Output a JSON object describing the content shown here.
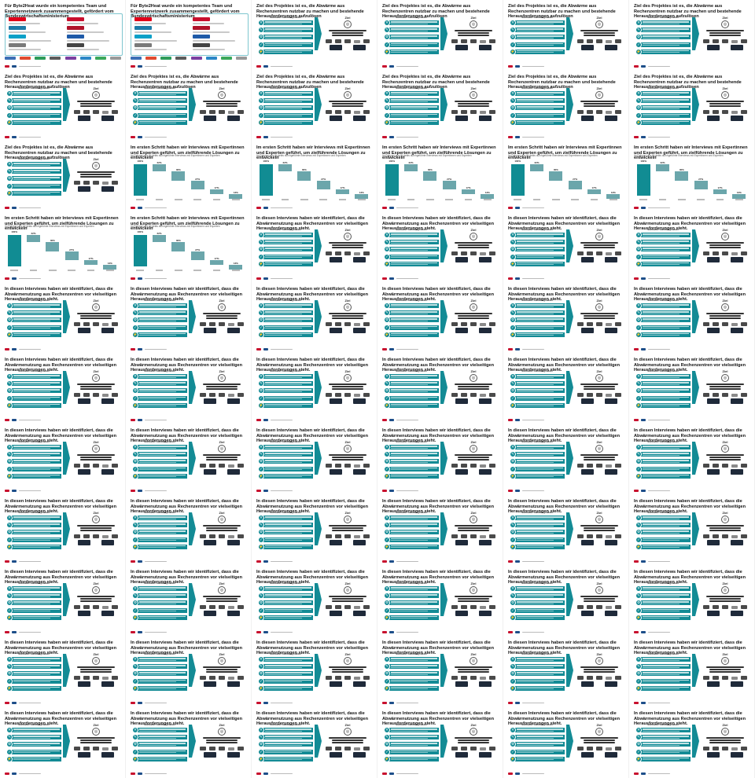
{
  "titles": {
    "team": "Für Byte2Heat wurde ein kompetentes Team und Expertennetzwerk zusammengestellt, gefördert vom Bundeswirtschaftsministerium",
    "goal": "Ziel des Projektes ist es, die Abwärme aus Rechenzentren nutzbar zu machen und bestehende Herausforderungen aufzulösen",
    "interviews": "Im ersten Schritt haben wir Interviews mit Expertinnen und Experten geführt, um zielführende Lösungen zu entwickeln",
    "challenges": "In diesen Interviews haben wir identifiziert, dass die Abwärmenutzung aus Rechenzentren vor vielseitigen Herausforderungen steht."
  },
  "subtitles": {
    "interviews": "Im Rahmen des Projekts durchgeführte Interviews mit Expertinnen und Experten"
  },
  "panel": {
    "left_heading": "Startseite / Handlungsfelder",
    "right_heading": "Ziel"
  },
  "layout_sequence": [
    "team",
    "team",
    "goal",
    "goal",
    "goal",
    "goal",
    "goal",
    "goal",
    "goal",
    "goal",
    "goal",
    "goal",
    "goal",
    "interviews",
    "interviews",
    "interviews",
    "interviews",
    "interviews",
    "interviews",
    "interviews",
    "challenges",
    "challenges",
    "challenges",
    "challenges",
    "challenges",
    "challenges",
    "challenges",
    "challenges",
    "challenges",
    "challenges",
    "challenges",
    "challenges",
    "challenges",
    "challenges",
    "challenges",
    "challenges",
    "challenges",
    "challenges",
    "challenges",
    "challenges",
    "challenges",
    "challenges",
    "challenges",
    "challenges",
    "challenges",
    "challenges",
    "challenges",
    "challenges",
    "challenges",
    "challenges",
    "challenges",
    "challenges",
    "challenges",
    "challenges",
    "challenges",
    "challenges",
    "challenges",
    "challenges",
    "challenges",
    "challenges",
    "challenges",
    "challenges",
    "challenges",
    "challenges",
    "challenges",
    "challenges"
  ],
  "waterfall": {
    "values": [
      100,
      22,
      30,
      27,
      17,
      13
    ],
    "labels": [
      "100%",
      "22%",
      "30%",
      "27%",
      "17%",
      "13%"
    ]
  },
  "colors": {
    "accent": "#138b95",
    "bar_first": "#118c93",
    "bar": "#6ba6ab"
  },
  "footer_icon": "logo-strip"
}
